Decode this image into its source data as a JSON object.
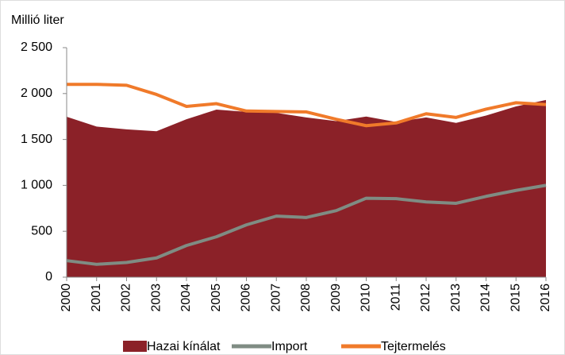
{
  "chart_data": {
    "type": "line",
    "y_axis_label": "Millió liter",
    "x": [
      2000,
      2001,
      2002,
      2003,
      2004,
      2005,
      2006,
      2007,
      2008,
      2009,
      2010,
      2011,
      2012,
      2013,
      2014,
      2015,
      2016
    ],
    "series": [
      {
        "name": "Hazai kínálat",
        "type": "area",
        "color": "#8b2128",
        "values": [
          1747,
          1640,
          1610,
          1590,
          1720,
          1825,
          1800,
          1790,
          1740,
          1700,
          1750,
          1690,
          1740,
          1680,
          1760,
          1860,
          1930
        ]
      },
      {
        "name": "Import",
        "type": "line",
        "color": "#7f8c83",
        "values": [
          180,
          140,
          160,
          210,
          345,
          440,
          570,
          665,
          650,
          725,
          860,
          855,
          820,
          805,
          880,
          945,
          1000
        ]
      },
      {
        "name": "Tejtermelés",
        "type": "line",
        "color": "#f07a2a",
        "values": [
          2100,
          2100,
          2090,
          1990,
          1860,
          1890,
          1810,
          1805,
          1800,
          1720,
          1650,
          1680,
          1780,
          1740,
          1830,
          1900,
          1880
        ]
      }
    ],
    "xlim": [
      2000,
      2016
    ],
    "ylim": [
      0,
      2500
    ],
    "yticks": [
      0,
      500,
      {
        "value": 1000,
        "label": "1 000"
      },
      {
        "value": 1500,
        "label": "1 500"
      },
      {
        "value": 2000,
        "label": "2 000"
      },
      {
        "value": 2500,
        "label": "2 500"
      }
    ]
  }
}
